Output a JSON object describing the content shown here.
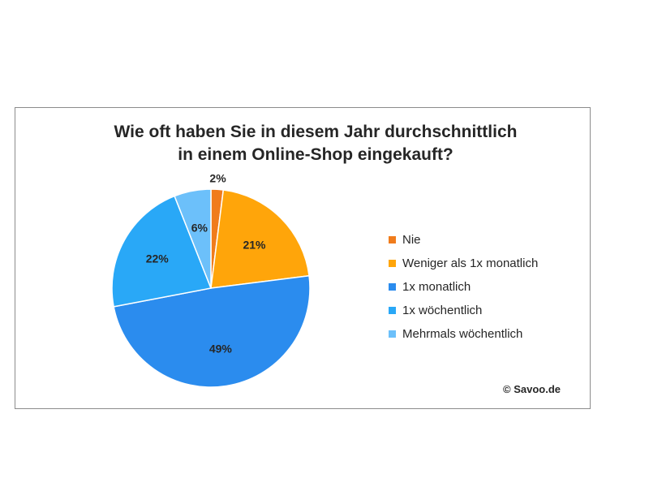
{
  "chart_data": {
    "type": "pie",
    "title_lines": [
      "Wie oft haben Sie in diesem Jahr durchschnittlich",
      "in einem Online-Shop eingekauft?"
    ],
    "slices": [
      {
        "label": "Nie",
        "value": 2,
        "display": "2%",
        "color": "#f07c1c"
      },
      {
        "label": "Weniger als 1x monatlich",
        "value": 21,
        "display": "21%",
        "color": "#ffa50a"
      },
      {
        "label": "1x monatlich",
        "value": 49,
        "display": "49%",
        "color": "#2b8cee"
      },
      {
        "label": "1x wöchentlich",
        "value": 22,
        "display": "22%",
        "color": "#29a8f7"
      },
      {
        "label": "Mehrmals wöchentlich",
        "value": 6,
        "display": "6%",
        "color": "#6cc0fa"
      }
    ],
    "legend_position": "right"
  },
  "copyright": "© Savoo.de"
}
